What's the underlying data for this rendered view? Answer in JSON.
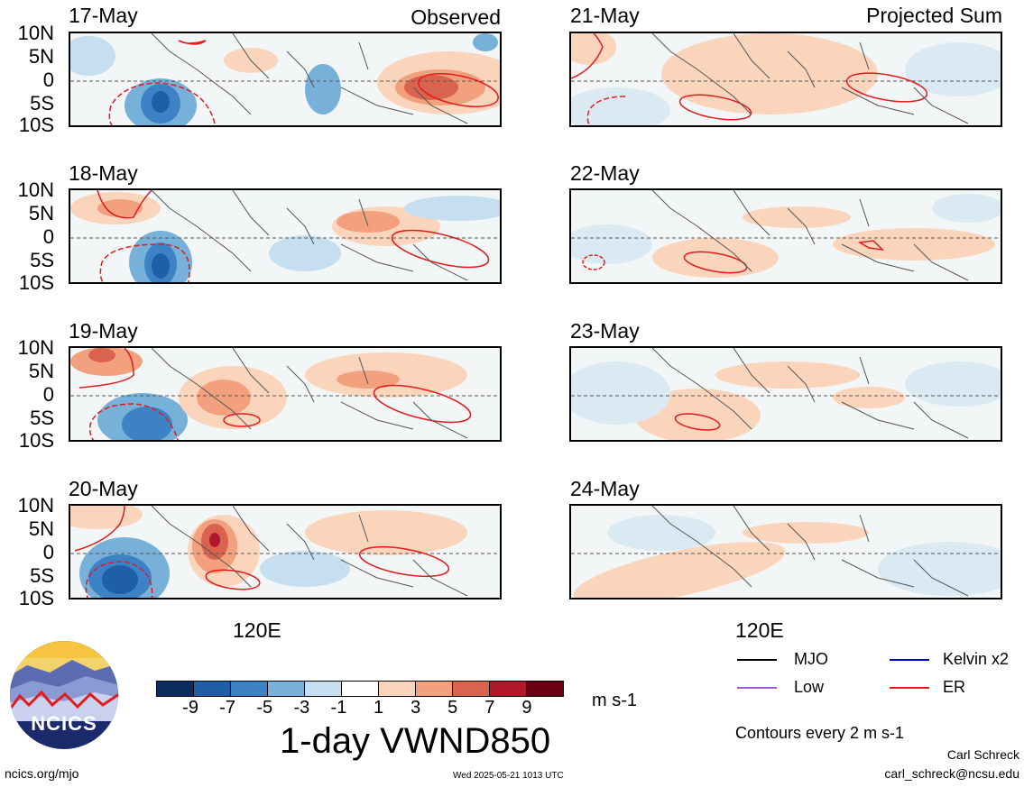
{
  "captions": {
    "left": "Observed",
    "right": "Projected Sum"
  },
  "lat_labels": [
    "10N",
    "5N",
    "0",
    "5S",
    "10S"
  ],
  "lon_label": "120E",
  "panels_left": [
    {
      "date": "17-May"
    },
    {
      "date": "18-May"
    },
    {
      "date": "19-May"
    },
    {
      "date": "20-May"
    }
  ],
  "panels_right": [
    {
      "date": "21-May"
    },
    {
      "date": "22-May"
    },
    {
      "date": "23-May"
    },
    {
      "date": "24-May"
    }
  ],
  "colorbar": {
    "ticks": [
      "-9",
      "-7",
      "-5",
      "-3",
      "-1",
      "1",
      "3",
      "5",
      "7",
      "9"
    ],
    "colors": [
      "#0b2d5e",
      "#1f5ea8",
      "#3d82c4",
      "#77b0d8",
      "#c5dff0",
      "#ffffff",
      "#fbd4bc",
      "#f2a07d",
      "#d9634f",
      "#b2182b",
      "#6b0015"
    ],
    "units": "m s-1",
    "title": "1-day VWND850"
  },
  "legend": {
    "items": [
      {
        "label": "MJO",
        "color": "#000000"
      },
      {
        "label": "Kelvin x2",
        "color": "#0000cc"
      },
      {
        "label": "Low",
        "color": "#a05adc"
      },
      {
        "label": "ER",
        "color": "#e41a1c"
      }
    ],
    "contours_note": "Contours every 2 m s-1"
  },
  "logo": {
    "text": "NCICS"
  },
  "footer": {
    "url": "ncics.org/mjo",
    "timestamp": "Wed 2025-05-21 1013 UTC",
    "author": "Carl Schreck",
    "email": "carl_schreck@ncsu.edu"
  }
}
